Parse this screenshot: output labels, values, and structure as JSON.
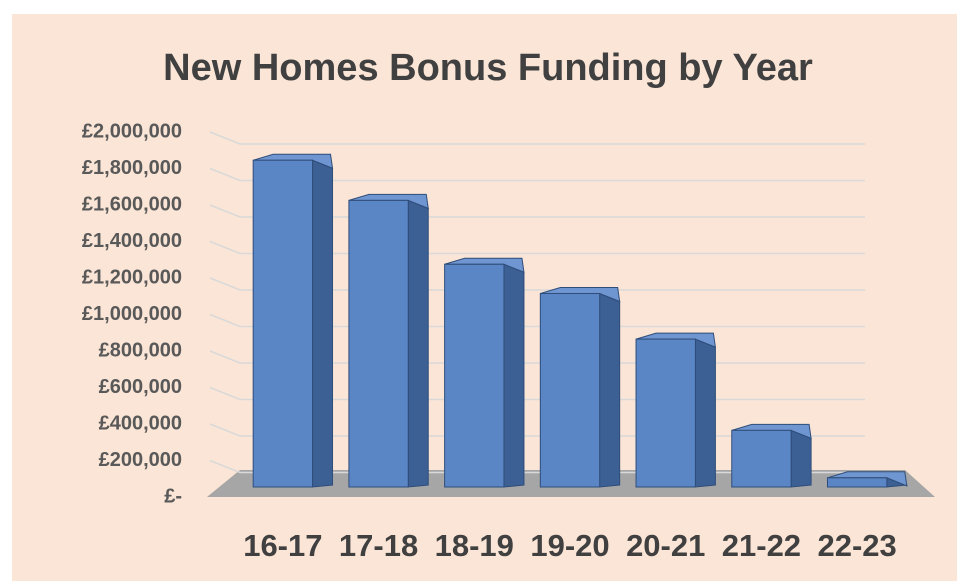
{
  "chart_data": {
    "type": "bar",
    "title": "New Homes Bonus Funding by Year",
    "categories": [
      "16-17",
      "17-18",
      "18-19",
      "19-20",
      "20-21",
      "21-22",
      "22-23"
    ],
    "values": [
      1900000,
      1680000,
      1330000,
      1170000,
      920000,
      420000,
      160000
    ],
    "color": "#5b86c6",
    "ylim": [
      0,
      2000000
    ],
    "yticks": [
      {
        "value": 0,
        "label": "£-"
      },
      {
        "value": 200000,
        "label": "£200,000"
      },
      {
        "value": 400000,
        "label": "£400,000"
      },
      {
        "value": 600000,
        "label": "£600,000"
      },
      {
        "value": 800000,
        "label": "£800,000"
      },
      {
        "value": 1000000,
        "label": "£1,000,000"
      },
      {
        "value": 1200000,
        "label": "£1,200,000"
      },
      {
        "value": 1400000,
        "label": "£1,400,000"
      },
      {
        "value": 1600000,
        "label": "£1,600,000"
      },
      {
        "value": 1800000,
        "label": "£1,800,000"
      },
      {
        "value": 2000000,
        "label": "£2,000,000"
      }
    ],
    "grid": true
  }
}
